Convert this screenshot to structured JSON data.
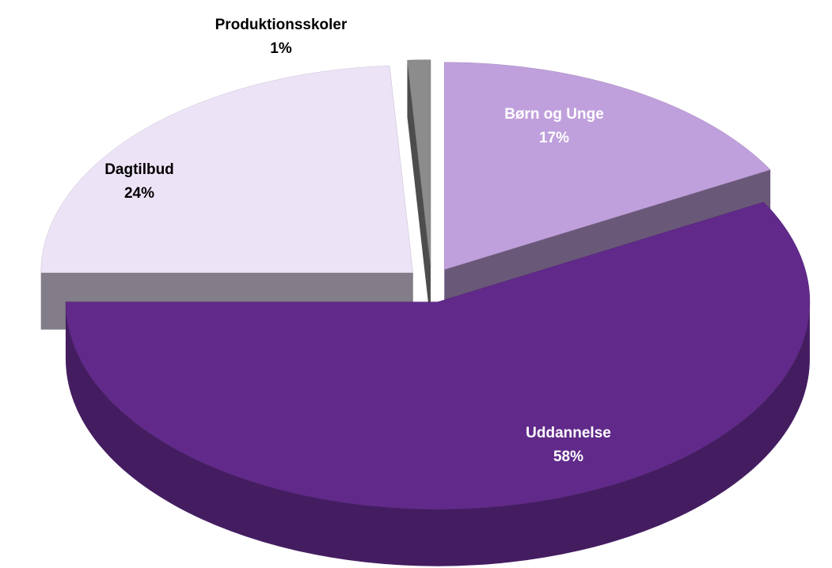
{
  "chart_data": {
    "type": "pie3d",
    "categories": [
      "Børn og Unge",
      "Uddannelse",
      "Dagtilbud",
      "Produktionsskoler"
    ],
    "values": [
      17,
      58,
      24,
      1
    ],
    "value_labels": [
      "17%",
      "58%",
      "24%",
      "1%"
    ],
    "colors": [
      "#c0a0dc",
      "#612a8a",
      "#ede3f7",
      "#8c8c8c"
    ]
  }
}
